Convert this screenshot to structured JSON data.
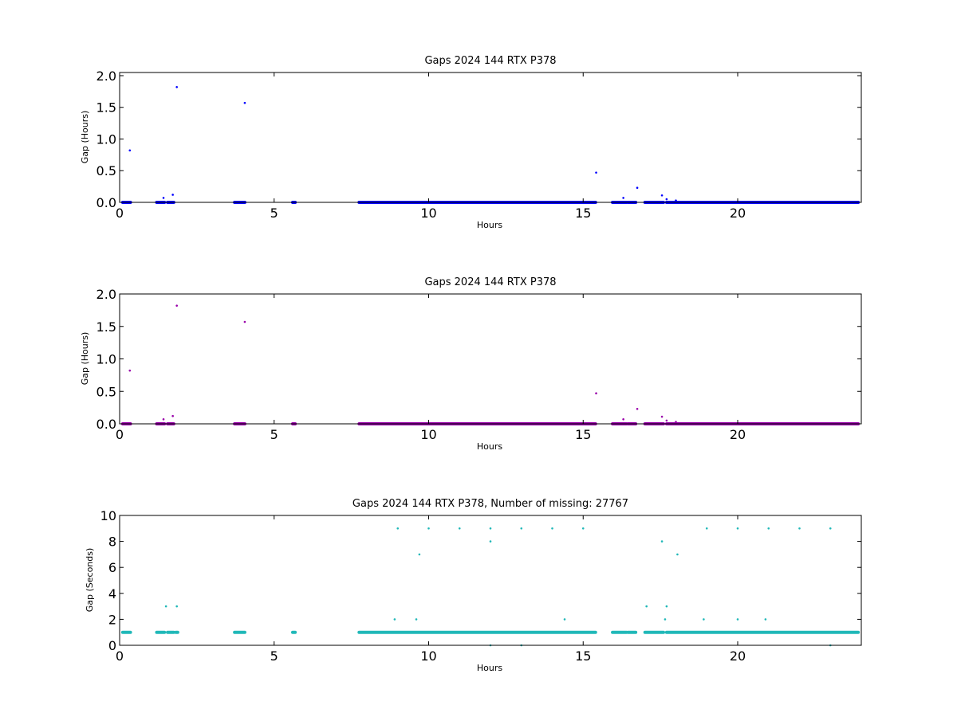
{
  "chart_data": [
    {
      "type": "scatter",
      "title": "Gaps 2024 144 RTX  P378",
      "xlabel": "Hours",
      "ylabel": "Gap (Hours)",
      "xlim": [
        0,
        24
      ],
      "ylim": [
        0,
        2.05
      ],
      "xticks": [
        0,
        5,
        10,
        15,
        20
      ],
      "yticks": [
        0.0,
        0.5,
        1.0,
        1.5,
        2.0
      ],
      "ytick_labels": [
        "0.0",
        "0.5",
        "1.0",
        "1.5",
        "2.0"
      ],
      "color": "#0000ff",
      "grid": false,
      "baseline_segments": [
        [
          0.1,
          0.35
        ],
        [
          1.2,
          1.45
        ],
        [
          1.55,
          1.75
        ],
        [
          3.72,
          4.05
        ],
        [
          5.6,
          5.68
        ],
        [
          7.75,
          15.4
        ],
        [
          15.95,
          16.4
        ],
        [
          16.45,
          16.7
        ],
        [
          17.0,
          17.6
        ],
        [
          17.7,
          23.9
        ]
      ],
      "points": [
        [
          0.33,
          0.82
        ],
        [
          1.85,
          1.82
        ],
        [
          4.05,
          1.57
        ],
        [
          1.42,
          0.07
        ],
        [
          1.72,
          0.12
        ],
        [
          15.42,
          0.47
        ],
        [
          16.3,
          0.07
        ],
        [
          16.75,
          0.23
        ],
        [
          17.55,
          0.11
        ],
        [
          17.7,
          0.05
        ],
        [
          18.0,
          0.03
        ]
      ]
    },
    {
      "type": "scatter",
      "title": "Gaps 2024 144 RTX  P378",
      "xlabel": "Hours",
      "ylabel": "Gap (Hours)",
      "xlim": [
        0,
        24
      ],
      "ylim": [
        0,
        2.0
      ],
      "xticks": [
        0,
        5,
        10,
        15,
        20
      ],
      "yticks": [
        0.0,
        0.5,
        1.0,
        1.5,
        2.0
      ],
      "ytick_labels": [
        "0.0",
        "0.5",
        "1.0",
        "1.5",
        "2.0"
      ],
      "color": "#9900aa",
      "grid": false,
      "baseline_segments": [
        [
          0.1,
          0.35
        ],
        [
          1.2,
          1.45
        ],
        [
          1.55,
          1.75
        ],
        [
          3.72,
          4.05
        ],
        [
          5.6,
          5.68
        ],
        [
          7.75,
          15.4
        ],
        [
          15.95,
          16.4
        ],
        [
          16.45,
          16.7
        ],
        [
          17.0,
          17.6
        ],
        [
          17.7,
          23.9
        ]
      ],
      "points": [
        [
          0.33,
          0.82
        ],
        [
          1.85,
          1.82
        ],
        [
          4.05,
          1.57
        ],
        [
          1.42,
          0.07
        ],
        [
          1.72,
          0.12
        ],
        [
          15.42,
          0.47
        ],
        [
          16.3,
          0.07
        ],
        [
          16.75,
          0.23
        ],
        [
          17.55,
          0.11
        ],
        [
          17.7,
          0.05
        ],
        [
          18.0,
          0.03
        ]
      ]
    },
    {
      "type": "scatter",
      "title": "Gaps 2024 144 RTX  P378, Number of missing: 27767",
      "xlabel": "Hours",
      "ylabel": "Gap (Seconds)",
      "xlim": [
        0,
        24
      ],
      "ylim": [
        0,
        10
      ],
      "xticks": [
        0,
        5,
        10,
        15,
        20
      ],
      "yticks": [
        0,
        2,
        4,
        6,
        8,
        10
      ],
      "ytick_labels": [
        "0",
        "2",
        "4",
        "6",
        "8",
        "10"
      ],
      "color": "#20b8b8",
      "grid": false,
      "baseline_value": 1,
      "baseline_segments": [
        [
          0.1,
          0.35
        ],
        [
          1.2,
          1.45
        ],
        [
          1.55,
          1.75
        ],
        [
          1.82,
          1.88
        ],
        [
          3.72,
          4.05
        ],
        [
          5.6,
          5.68
        ],
        [
          7.75,
          15.4
        ],
        [
          15.95,
          16.4
        ],
        [
          16.45,
          16.7
        ],
        [
          17.0,
          17.6
        ],
        [
          17.7,
          23.9
        ]
      ],
      "points": [
        [
          1.5,
          3
        ],
        [
          1.85,
          3
        ],
        [
          17.05,
          3
        ],
        [
          17.7,
          3
        ],
        [
          8.9,
          2
        ],
        [
          9.6,
          2
        ],
        [
          14.4,
          2
        ],
        [
          17.65,
          2
        ],
        [
          18.9,
          2
        ],
        [
          20.0,
          2
        ],
        [
          20.9,
          2
        ],
        [
          9.0,
          9
        ],
        [
          10.0,
          9
        ],
        [
          11.0,
          9
        ],
        [
          12.0,
          9
        ],
        [
          13.0,
          9
        ],
        [
          14.0,
          9
        ],
        [
          15.0,
          9
        ],
        [
          19.0,
          9
        ],
        [
          20.0,
          9
        ],
        [
          21.0,
          9
        ],
        [
          22.0,
          9
        ],
        [
          23.0,
          9
        ],
        [
          9.7,
          7
        ],
        [
          18.05,
          7
        ],
        [
          12.0,
          8
        ],
        [
          17.55,
          8
        ],
        [
          12.0,
          0
        ],
        [
          13.0,
          0
        ],
        [
          23.0,
          0
        ]
      ]
    }
  ]
}
